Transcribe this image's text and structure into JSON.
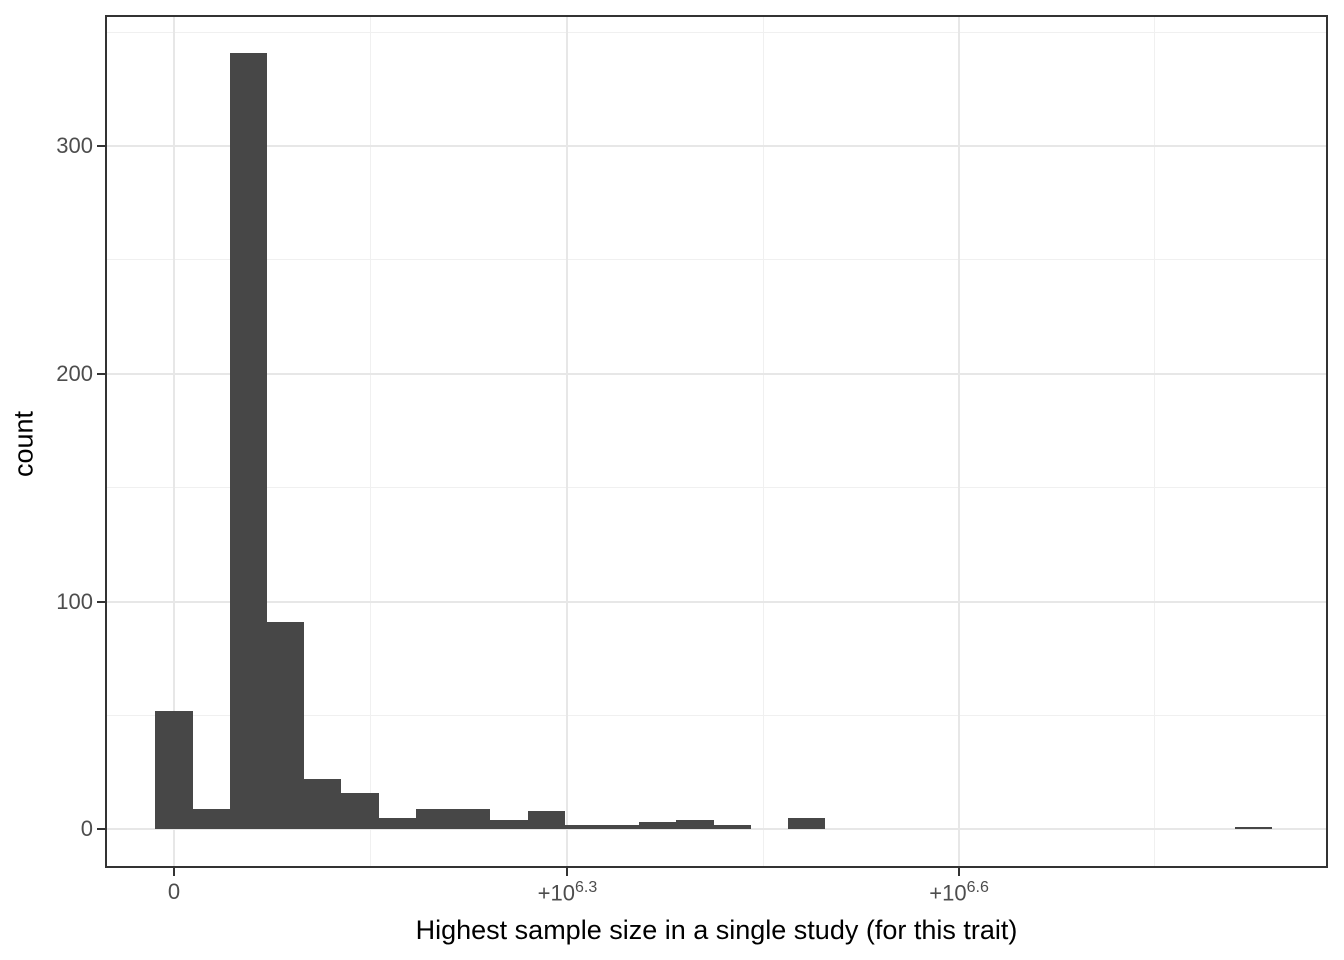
{
  "chart_data": {
    "type": "bar",
    "subtype": "histogram",
    "title": "",
    "xlabel": "Highest sample size in a single study (for this trait)",
    "ylabel": "count",
    "xlim": [
      -350000,
      5852000
    ],
    "ylim": [
      -17,
      357.5
    ],
    "grid": "on",
    "legend": "none",
    "bar_color": "#474747",
    "histogram": {
      "bin_start": -94350,
      "binwidth": 188700,
      "counts": [
        52,
        9,
        341,
        91,
        22,
        16,
        5,
        9,
        9,
        4,
        8,
        2,
        2,
        3,
        4,
        2,
        0,
        5,
        0,
        0,
        0,
        0,
        0,
        0,
        0,
        0,
        0,
        0,
        0,
        1
      ]
    },
    "x_axis": {
      "major_ticks": [
        {
          "value": 0,
          "label_base": "0",
          "label_exp": ""
        },
        {
          "value": 1995262,
          "label_base": "+10",
          "label_exp": "6.3"
        },
        {
          "value": 3981072,
          "label_base": "+10",
          "label_exp": "6.6"
        }
      ],
      "minor_ticks": [
        997631,
        2988167,
        4974120
      ]
    },
    "y_axis": {
      "major_ticks": [
        {
          "value": 0,
          "label": "0"
        },
        {
          "value": 100,
          "label": "100"
        },
        {
          "value": 200,
          "label": "200"
        },
        {
          "value": 300,
          "label": "300"
        }
      ],
      "minor_ticks": [
        50,
        150,
        250,
        350
      ]
    }
  },
  "style_colors": {
    "bar": "#474747",
    "grid_major": "#E7E7E7",
    "grid_minor": "#F0F0F0",
    "panel_border": "#333333",
    "tick_mark": "#333333",
    "tick_label": "#4D4D4D",
    "axis_title": "#000000",
    "background": "#FFFFFF"
  }
}
